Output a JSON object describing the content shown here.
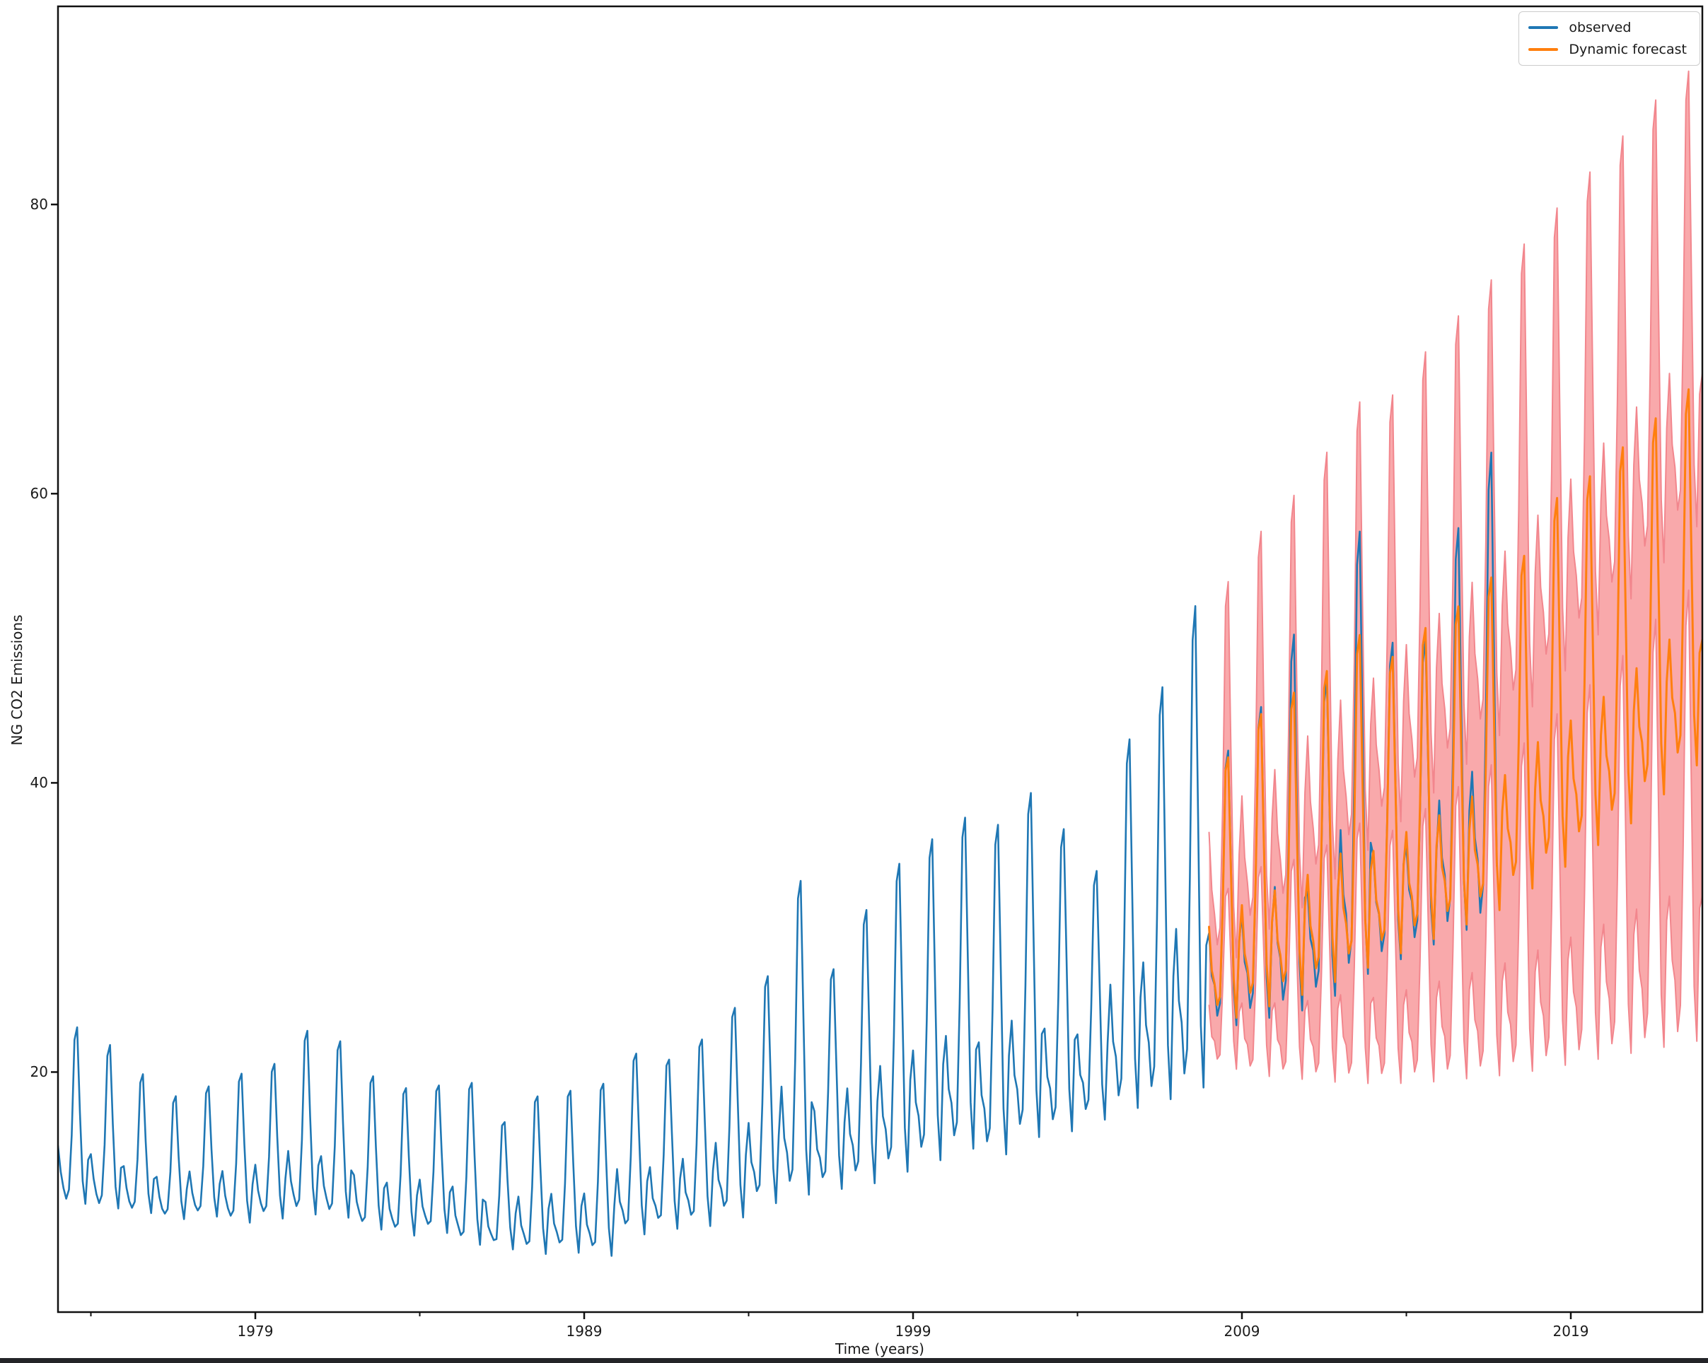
{
  "figure": {
    "xlabel": "Time (years)",
    "ylabel": "NG CO2 Emissions",
    "xlim": [
      1973.0,
      2023.0
    ],
    "ylim": [
      3.4,
      93.7
    ],
    "x_ticks": [
      1979,
      1989,
      1999,
      2009,
      2019
    ],
    "x_minor_ticks": [
      1974,
      1984,
      1994,
      2004,
      2014
    ],
    "y_ticks": [
      20,
      40,
      60,
      80
    ],
    "background": "#ffffff",
    "spine_color": "#111111",
    "tick_label_color": "#1a1a1a",
    "bottom_window_edge_color": "#232428"
  },
  "legend": {
    "position": "upper right",
    "items": [
      {
        "label": "observed",
        "color": "#1f77b4"
      },
      {
        "label": "Dynamic forecast",
        "color": "#ff7f0e"
      }
    ]
  },
  "chart_data": {
    "type": "line",
    "title": "",
    "xlabel": "Time (years)",
    "ylabel": "NG CO2 Emissions",
    "x_unit": "calendar year, monthly sampling",
    "grid": false,
    "legend_position": "upper right",
    "xlim": [
      1973.0,
      2023.0
    ],
    "ylim": [
      3.4,
      93.7
    ],
    "seasonal_shape_by_month": [
      0.32,
      0.18,
      0.12,
      0.02,
      0.08,
      0.42,
      0.92,
      1.0,
      0.55,
      0.12,
      0.0,
      0.28
    ],
    "series": [
      {
        "name": "observed",
        "color": "#1f77b4",
        "line_width": 2.6,
        "start": 1973.0,
        "end": 2016.75,
        "yearly_envelope_peak_trough": [
          [
            1973,
            23.0,
            10.8
          ],
          [
            1974,
            21.8,
            10.5
          ],
          [
            1975,
            19.8,
            10.2
          ],
          [
            1976,
            18.3,
            9.8
          ],
          [
            1977,
            19.0,
            10.0
          ],
          [
            1978,
            19.9,
            9.6
          ],
          [
            1979,
            20.6,
            9.9
          ],
          [
            1980,
            22.9,
            10.2
          ],
          [
            1981,
            22.2,
            10.0
          ],
          [
            1982,
            19.8,
            9.2
          ],
          [
            1983,
            19.0,
            8.8
          ],
          [
            1984,
            19.2,
            9.0
          ],
          [
            1985,
            19.4,
            8.2
          ],
          [
            1986,
            16.7,
            7.9
          ],
          [
            1987,
            18.5,
            7.6
          ],
          [
            1988,
            18.9,
            7.7
          ],
          [
            1989,
            19.4,
            7.5
          ],
          [
            1990,
            21.5,
            9.0
          ],
          [
            1991,
            21.1,
            9.4
          ],
          [
            1992,
            22.5,
            9.6
          ],
          [
            1993,
            24.7,
            10.2
          ],
          [
            1994,
            26.9,
            11.2
          ],
          [
            1995,
            33.5,
            11.8
          ],
          [
            1996,
            27.4,
            12.2
          ],
          [
            1997,
            31.5,
            12.6
          ],
          [
            1998,
            34.7,
            13.4
          ],
          [
            1999,
            36.4,
            14.2
          ],
          [
            2000,
            37.9,
            15.0
          ],
          [
            2001,
            37.4,
            14.6
          ],
          [
            2002,
            39.6,
            15.8
          ],
          [
            2003,
            37.1,
            16.2
          ],
          [
            2004,
            34.2,
            17.0
          ],
          [
            2005,
            43.3,
            17.8
          ],
          [
            2006,
            46.9,
            18.4
          ],
          [
            2007,
            52.5,
            19.2
          ],
          [
            2008,
            42.5,
            23.5
          ],
          [
            2009,
            45.5,
            24.0
          ],
          [
            2010,
            50.5,
            24.5
          ],
          [
            2011,
            47.4,
            25.5
          ],
          [
            2012,
            57.6,
            27.0
          ],
          [
            2013,
            49.9,
            28.0
          ],
          [
            2014,
            50.1,
            29.0
          ],
          [
            2015,
            57.8,
            30.0
          ],
          [
            2016,
            63.0,
            30.5
          ]
        ]
      },
      {
        "name": "Dynamic forecast",
        "color": "#ff7f0e",
        "line_width": 3.0,
        "start": 2008.0,
        "end": 2023.0,
        "yearly_envelope_peak_trough": [
          [
            2008,
            42.0,
            24.0
          ],
          [
            2009,
            45.0,
            24.8
          ],
          [
            2010,
            46.5,
            25.6
          ],
          [
            2011,
            48.0,
            26.5
          ],
          [
            2012,
            50.5,
            27.5
          ],
          [
            2013,
            49.0,
            28.5
          ],
          [
            2014,
            51.0,
            29.5
          ],
          [
            2015,
            52.5,
            30.5
          ],
          [
            2016,
            54.5,
            31.5
          ],
          [
            2017,
            56.0,
            33.0
          ],
          [
            2018,
            60.0,
            34.5
          ],
          [
            2019,
            61.5,
            36.0
          ],
          [
            2020,
            63.5,
            37.5
          ],
          [
            2021,
            65.5,
            39.5
          ],
          [
            2022,
            67.5,
            41.5
          ]
        ]
      }
    ],
    "confidence_band": {
      "name": "dynamic forecast confidence interval",
      "fill_color": "#f9a9ab",
      "edge_color": "#f2868d",
      "start": 2008.0,
      "end": 2023.0,
      "upper_yearly_envelope_peak_trough": [
        [
          2008,
          54.0,
          28.0
        ],
        [
          2009,
          57.5,
          30.0
        ],
        [
          2010,
          60.0,
          31.5
        ],
        [
          2011,
          63.0,
          33.5
        ],
        [
          2012,
          66.5,
          35.5
        ],
        [
          2013,
          67.0,
          37.5
        ],
        [
          2014,
          70.0,
          39.5
        ],
        [
          2015,
          72.5,
          41.5
        ],
        [
          2016,
          75.0,
          43.5
        ],
        [
          2017,
          77.5,
          45.5
        ],
        [
          2018,
          80.0,
          48.0
        ],
        [
          2019,
          82.5,
          50.5
        ],
        [
          2020,
          85.0,
          53.0
        ],
        [
          2021,
          87.5,
          55.5
        ],
        [
          2022,
          89.5,
          58.0
        ]
      ],
      "lower_yearly_envelope_peak_trough": [
        [
          2008,
          33.0,
          20.5
        ],
        [
          2009,
          34.5,
          20.0
        ],
        [
          2010,
          35.0,
          19.8
        ],
        [
          2011,
          36.0,
          19.6
        ],
        [
          2012,
          37.5,
          19.5
        ],
        [
          2013,
          37.0,
          19.5
        ],
        [
          2014,
          38.5,
          19.6
        ],
        [
          2015,
          40.0,
          19.8
        ],
        [
          2016,
          41.5,
          20.0
        ],
        [
          2017,
          43.0,
          20.3
        ],
        [
          2018,
          45.0,
          20.7
        ],
        [
          2019,
          47.0,
          21.1
        ],
        [
          2020,
          49.0,
          21.5
        ],
        [
          2021,
          51.5,
          21.9
        ],
        [
          2022,
          53.5,
          22.3
        ]
      ]
    }
  }
}
